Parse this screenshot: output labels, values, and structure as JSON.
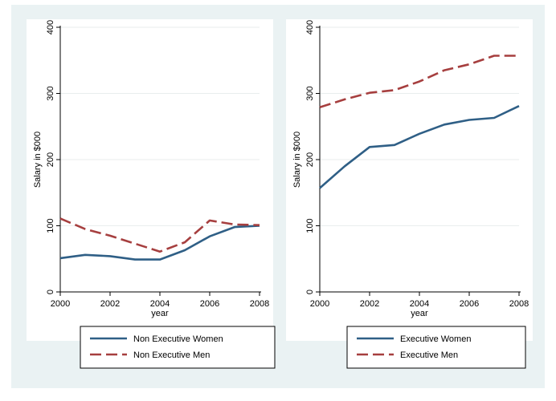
{
  "chart_data": [
    {
      "type": "line",
      "xlabel": "year",
      "ylabel": "Salary in $000",
      "xlim": [
        2000,
        2008
      ],
      "ylim": [
        0,
        400
      ],
      "xticks": [
        "2000",
        "2002",
        "2004",
        "2006",
        "2008"
      ],
      "yticks": [
        "0",
        "100",
        "200",
        "300",
        "400"
      ],
      "grid": "horizontal",
      "legend_position": "bottom",
      "x": [
        2000,
        2001,
        2002,
        2003,
        2004,
        2005,
        2006,
        2007,
        2008
      ],
      "series": [
        {
          "name": "Non Executive Women",
          "color": "#2f5f86",
          "style": "solid",
          "values": [
            51,
            56,
            54,
            49,
            49,
            63,
            84,
            98,
            100
          ]
        },
        {
          "name": "Non Executive Men",
          "color": "#a63f3f",
          "style": "dashed",
          "values": [
            111,
            95,
            85,
            73,
            61,
            75,
            108,
            102,
            101
          ]
        }
      ]
    },
    {
      "type": "line",
      "xlabel": "year",
      "ylabel": "Salary in $000",
      "xlim": [
        2000,
        2008
      ],
      "ylim": [
        0,
        400
      ],
      "xticks": [
        "2000",
        "2002",
        "2004",
        "2006",
        "2008"
      ],
      "yticks": [
        "0",
        "100",
        "200",
        "300",
        "400"
      ],
      "grid": "horizontal",
      "legend_position": "bottom",
      "x": [
        2000,
        2001,
        2002,
        2003,
        2004,
        2005,
        2006,
        2007,
        2008
      ],
      "series": [
        {
          "name": "Executive Women",
          "color": "#2f5f86",
          "style": "solid",
          "values": [
            157,
            190,
            219,
            222,
            239,
            253,
            260,
            263,
            281
          ]
        },
        {
          "name": "Executive Men",
          "color": "#a63f3f",
          "style": "dashed",
          "values": [
            279,
            291,
            301,
            305,
            318,
            335,
            344,
            357,
            357
          ]
        }
      ]
    }
  ]
}
